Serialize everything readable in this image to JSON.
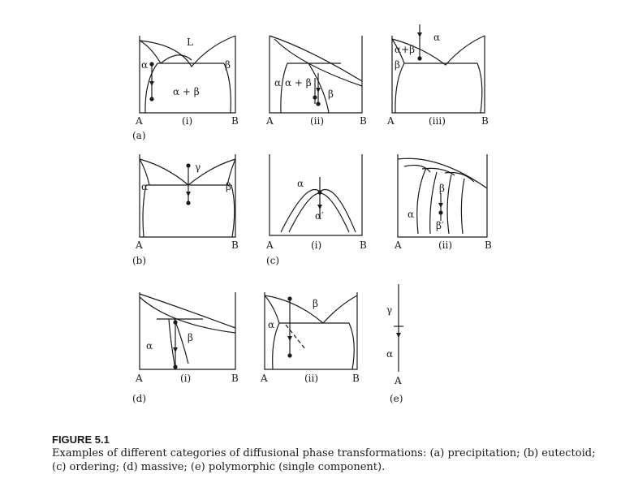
{
  "diagrams": {
    "a_i": {
      "L": "L",
      "alpha": "α",
      "beta": "β",
      "two_phase": "α + β",
      "left": "A",
      "right": "B",
      "sub": "(i)"
    },
    "a_ii": {
      "alpha": "α",
      "two_phase": "α + β",
      "beta": "β",
      "left": "A",
      "right": "B",
      "sub": "(ii)"
    },
    "a_iii": {
      "alpha": "α",
      "two_phase": "α+β",
      "beta": "β",
      "left": "A",
      "right": "B",
      "sub": "(iii)"
    },
    "b": {
      "alpha": "α",
      "beta": "β",
      "gamma": "γ",
      "left": "A",
      "right": "B"
    },
    "c_i": {
      "alpha": "α",
      "alpha_prime": "α′",
      "left": "A",
      "right": "B",
      "sub": "(i)"
    },
    "c_ii": {
      "beta": "β",
      "alpha": "α",
      "beta_prime": "β′",
      "left": "A",
      "right": "B",
      "sub": "(ii)"
    },
    "d_i": {
      "alpha": "α",
      "beta": "β",
      "left": "A",
      "right": "B",
      "sub": "(i)"
    },
    "d_ii": {
      "beta": "β",
      "alpha": "α",
      "left": "A",
      "right": "B",
      "sub": "(ii)"
    },
    "e": {
      "gamma": "γ",
      "alpha": "α",
      "left": "A"
    }
  },
  "panel_labels": {
    "a": "(a)",
    "b": "(b)",
    "c": "(c)",
    "d": "(d)",
    "e": "(e)"
  },
  "caption": {
    "title": "FIGURE 5.1",
    "text": "Examples of different categories of diffusional phase transformations: (a) precipitation; (b) eutectoid; (c) ordering; (d) massive; (e) polymorphic (single component)."
  }
}
